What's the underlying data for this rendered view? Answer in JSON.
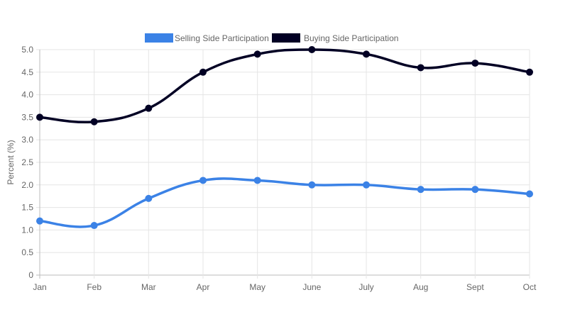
{
  "chart_data": {
    "type": "line",
    "categories": [
      "Jan",
      "Feb",
      "Mar",
      "Apr",
      "May",
      "June",
      "July",
      "Aug",
      "Sept",
      "Oct"
    ],
    "series": [
      {
        "name": "Selling Side Participation",
        "color": "#3b82e6",
        "values": [
          1.2,
          1.1,
          1.7,
          2.1,
          2.1,
          2.0,
          2.0,
          1.9,
          1.9,
          1.8
        ]
      },
      {
        "name": "Buying Side Participation",
        "color": "#020024",
        "values": [
          3.5,
          3.4,
          3.7,
          4.5,
          4.9,
          5.0,
          4.9,
          4.6,
          4.7,
          4.5
        ]
      }
    ],
    "ylabel": "Percent (%)",
    "xlabel": "",
    "ylim": [
      0,
      5
    ],
    "yticks": [
      "0",
      "0.5",
      "1.0",
      "1.5",
      "2.0",
      "2.5",
      "3.0",
      "3.5",
      "4.0",
      "4.5",
      "5.0"
    ],
    "grid": true,
    "legend": "top"
  }
}
